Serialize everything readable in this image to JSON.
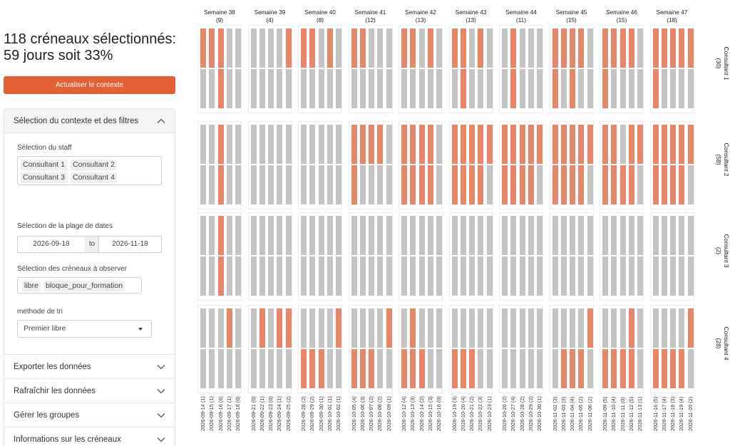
{
  "sidebar": {
    "headline": "118 créneaux sélectionnés: 59 jours soit 33%",
    "refresh_button": "Actualiser le contexte",
    "filters_section": {
      "title": "Sélection du contexte et des filtres",
      "staff_label": "Sélection du staff",
      "staff_tags": [
        "Consultant 1",
        "Consultant 2",
        "Consultant 3",
        "Consultant 4"
      ],
      "date_range_label": "Sélection de la plage de dates",
      "date_start": "2026-09-18",
      "date_separator": "to",
      "date_end": "2026-11-18",
      "slots_label": "Sélection des créneaux à observer",
      "slot_tags": [
        "libre",
        "bloque_pour_formation"
      ],
      "sort_label": "methode de tri",
      "sort_value": "Premier libre"
    },
    "sections": [
      {
        "title": "Exporter les données"
      },
      {
        "title": "Rafraîchir les données"
      },
      {
        "title": "Gérer les groupes"
      },
      {
        "title": "Informations sur les créneaux"
      }
    ]
  },
  "chart_data": {
    "type": "heatmap",
    "colors": {
      "selected": "#e8866a",
      "other": "#c4c4c4"
    },
    "columns": [
      {
        "title": "Semaine 38",
        "count": "(9)"
      },
      {
        "title": "Semaine 39",
        "count": "(4)"
      },
      {
        "title": "Semaine 40",
        "count": "(8)"
      },
      {
        "title": "Semaine 41",
        "count": "(12)"
      },
      {
        "title": "Semaine 42",
        "count": "(13)"
      },
      {
        "title": "Semaine 43",
        "count": "(13)"
      },
      {
        "title": "Semaine 44",
        "count": "(11)"
      },
      {
        "title": "Semaine 45",
        "count": "(15)"
      },
      {
        "title": "Semaine 46",
        "count": "(15)"
      },
      {
        "title": "Semaine 47",
        "count": "(18)"
      }
    ],
    "rows": [
      {
        "title": "Consultant 1",
        "count": "(30)"
      },
      {
        "title": "Consultant 2",
        "count": "(58)"
      },
      {
        "title": "Consultant 3",
        "count": "(2)"
      },
      {
        "title": "Consultant 4",
        "count": "(28)"
      }
    ],
    "day_labels": [
      [
        "2026-09-14 (1)",
        "2026-09-15 (1)",
        "2026-09-16 (6)",
        "2026-09-17 (1)",
        "2026-09-18 (0)"
      ],
      [
        "2026-09-21 (0)",
        "2026-09-22 (1)",
        "2026-09-23 (0)",
        "2026-09-24 (1)",
        "2026-09-25 (2)"
      ],
      [
        "2026-09-28 (2)",
        "2026-09-29 (2)",
        "2026-09-30 (1)",
        "2026-10-01 (1)",
        "2026-10-02 (1)"
      ],
      [
        "2026-10-05 (4)",
        "2026-10-06 (3)",
        "2026-10-07 (2)",
        "2026-10-08 (2)",
        "2026-10-09 (1)"
      ],
      [
        "2026-10-12 (4)",
        "2026-10-13 (3)",
        "2026-10-14 (2)",
        "2026-10-15 (3)",
        "2026-10-16 (0)"
      ],
      [
        "2026-10-19 (3)",
        "2026-10-20 (4)",
        "2026-10-21 (2)",
        "2026-10-22 (3)",
        "2026-10-23 (1)"
      ],
      [
        "2026-10-26 (2)",
        "2026-10-27 (4)",
        "2026-10-28 (2)",
        "2026-10-29 (2)",
        "2026-10-30 (1)"
      ],
      [
        "2026-11-02 (3)",
        "2026-11-03 (3)",
        "2026-11-04 (4)",
        "2026-11-05 (2)",
        "2026-11-06 (2)"
      ],
      [
        "2026-11-09 (5)",
        "2026-11-10 (4)",
        "2026-11-11 (0)",
        "2026-11-12 (5)",
        "2026-11-13 (1)"
      ],
      [
        "2026-11-16 (5)",
        "2026-11-17 (4)",
        "2026-11-18 (3)",
        "2026-11-19 (4)",
        "2026-11-20 (2)"
      ]
    ],
    "slots": [
      [
        [
          [
            1,
            1,
            1,
            0,
            0
          ],
          [
            0,
            0,
            1,
            0,
            0
          ]
        ],
        [
          [
            0,
            0,
            0,
            0,
            1
          ],
          [
            0,
            0,
            0,
            0,
            0
          ]
        ],
        [
          [
            1,
            1,
            0,
            1,
            0
          ],
          [
            0,
            0,
            0,
            0,
            0
          ]
        ],
        [
          [
            1,
            1,
            0,
            0,
            0
          ],
          [
            0,
            0,
            0,
            0,
            0
          ]
        ],
        [
          [
            1,
            1,
            0,
            1,
            0
          ],
          [
            0,
            0,
            0,
            0,
            0
          ]
        ],
        [
          [
            1,
            1,
            0,
            1,
            0
          ],
          [
            0,
            1,
            0,
            0,
            0
          ]
        ],
        [
          [
            0,
            1,
            0,
            0,
            0
          ],
          [
            0,
            1,
            0,
            0,
            0
          ]
        ],
        [
          [
            1,
            1,
            1,
            1,
            0
          ],
          [
            1,
            0,
            1,
            0,
            0
          ]
        ],
        [
          [
            1,
            1,
            1,
            1,
            0
          ],
          [
            1,
            0,
            0,
            0,
            0
          ]
        ],
        [
          [
            1,
            1,
            1,
            1,
            1
          ],
          [
            1,
            0,
            0,
            0,
            0
          ]
        ]
      ],
      [
        [
          [
            0,
            0,
            1,
            0,
            0
          ],
          [
            0,
            0,
            1,
            0,
            0
          ]
        ],
        [
          [
            0,
            0,
            0,
            0,
            0
          ],
          [
            0,
            0,
            0,
            0,
            0
          ]
        ],
        [
          [
            0,
            0,
            0,
            0,
            0
          ],
          [
            0,
            0,
            0,
            0,
            0
          ]
        ],
        [
          [
            1,
            1,
            1,
            1,
            0
          ],
          [
            1,
            0,
            0,
            0,
            0
          ]
        ],
        [
          [
            1,
            1,
            1,
            1,
            0
          ],
          [
            1,
            1,
            1,
            1,
            0
          ]
        ],
        [
          [
            1,
            1,
            1,
            1,
            1
          ],
          [
            1,
            1,
            1,
            1,
            0
          ]
        ],
        [
          [
            1,
            1,
            1,
            1,
            1
          ],
          [
            1,
            1,
            1,
            1,
            0
          ]
        ],
        [
          [
            1,
            1,
            1,
            1,
            1
          ],
          [
            1,
            1,
            1,
            1,
            0
          ]
        ],
        [
          [
            1,
            1,
            0,
            1,
            1
          ],
          [
            1,
            1,
            1,
            1,
            0
          ]
        ],
        [
          [
            1,
            1,
            1,
            1,
            1
          ],
          [
            1,
            1,
            1,
            1,
            0
          ]
        ]
      ],
      [
        [
          [
            0,
            0,
            1,
            0,
            0
          ],
          [
            0,
            0,
            1,
            0,
            0
          ]
        ],
        [
          [
            0,
            0,
            0,
            0,
            0
          ],
          [
            0,
            0,
            0,
            0,
            0
          ]
        ],
        [
          [
            0,
            0,
            0,
            0,
            0
          ],
          [
            0,
            0,
            0,
            0,
            0
          ]
        ],
        [
          [
            0,
            0,
            0,
            0,
            0
          ],
          [
            0,
            0,
            0,
            0,
            0
          ]
        ],
        [
          [
            0,
            0,
            0,
            0,
            0
          ],
          [
            0,
            0,
            0,
            0,
            0
          ]
        ],
        [
          [
            0,
            0,
            0,
            0,
            0
          ],
          [
            0,
            0,
            0,
            0,
            0
          ]
        ],
        [
          [
            0,
            0,
            0,
            0,
            0
          ],
          [
            0,
            0,
            0,
            0,
            0
          ]
        ],
        [
          [
            0,
            0,
            0,
            0,
            0
          ],
          [
            0,
            0,
            0,
            0,
            0
          ]
        ],
        [
          [
            0,
            0,
            0,
            0,
            0
          ],
          [
            0,
            0,
            0,
            0,
            0
          ]
        ],
        [
          [
            0,
            0,
            0,
            0,
            0
          ],
          [
            0,
            0,
            0,
            0,
            0
          ]
        ]
      ],
      [
        [
          [
            0,
            0,
            0,
            1,
            0
          ],
          [
            0,
            0,
            0,
            0,
            0
          ]
        ],
        [
          [
            0,
            1,
            0,
            1,
            1
          ],
          [
            0,
            0,
            0,
            0,
            0
          ]
        ],
        [
          [
            0,
            0,
            0,
            0,
            1
          ],
          [
            1,
            1,
            1,
            0,
            0
          ]
        ],
        [
          [
            0,
            0,
            0,
            0,
            1
          ],
          [
            1,
            1,
            1,
            0,
            0
          ]
        ],
        [
          [
            0,
            1,
            0,
            0,
            0
          ],
          [
            1,
            1,
            1,
            0,
            0
          ]
        ],
        [
          [
            0,
            0,
            0,
            0,
            0
          ],
          [
            1,
            1,
            1,
            0,
            0
          ]
        ],
        [
          [
            0,
            0,
            0,
            0,
            0
          ],
          [
            0,
            0,
            0,
            0,
            0
          ]
        ],
        [
          [
            0,
            0,
            0,
            0,
            1
          ],
          [
            0,
            1,
            1,
            1,
            0
          ]
        ],
        [
          [
            0,
            0,
            0,
            1,
            0
          ],
          [
            1,
            1,
            1,
            1,
            0
          ]
        ],
        [
          [
            0,
            0,
            0,
            0,
            1
          ],
          [
            1,
            1,
            1,
            1,
            0
          ]
        ]
      ]
    ]
  }
}
